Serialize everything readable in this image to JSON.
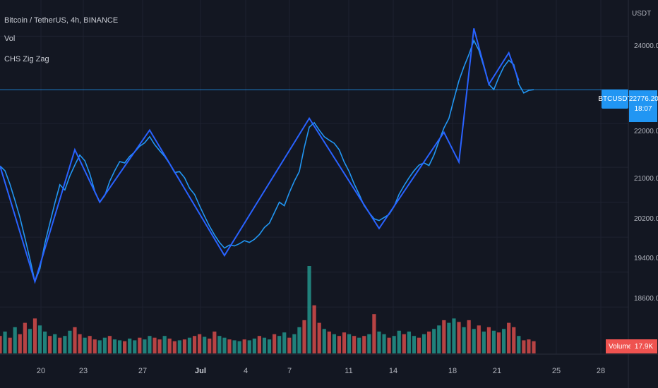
{
  "legend": {
    "symbol": "Bitcoin / TetherUS, 4h, BINANCE",
    "vol": "Vol",
    "zigzag": "CHS Zig Zag"
  },
  "axis": {
    "unit": "USDT",
    "y_ticks": [
      "24000.00",
      "22000.00",
      "21000.00",
      "20200.00",
      "19400.00",
      "18600.00"
    ],
    "x_ticks": [
      "20",
      "23",
      "27",
      "Jul",
      "4",
      "7",
      "11",
      "14",
      "18",
      "21",
      "25",
      "28"
    ]
  },
  "price": {
    "symbol_label": "BTCUSDT",
    "last": "22776.20",
    "countdown": "18:07"
  },
  "volume": {
    "label": "Volume",
    "value": "17.9K"
  },
  "colors": {
    "background": "#131722",
    "price_line": "#2196f3",
    "zigzag": "#2962ff",
    "vol_up": "#26a69a",
    "vol_down": "#ef5350"
  },
  "chart_data": {
    "type": "line",
    "title": "Bitcoin / TetherUS, 4h, BINANCE",
    "series": [
      {
        "name": "Bitcoin / TetherUS",
        "points": [
          [
            0,
            21030
          ],
          [
            1,
            20920
          ],
          [
            2,
            20610
          ],
          [
            3,
            20240
          ],
          [
            4,
            19850
          ],
          [
            5,
            19380
          ],
          [
            6,
            18900
          ],
          [
            7,
            18380
          ],
          [
            8,
            18680
          ],
          [
            9,
            19260
          ],
          [
            10,
            19720
          ],
          [
            11,
            20180
          ],
          [
            12,
            20600
          ],
          [
            13,
            20480
          ],
          [
            14,
            20800
          ],
          [
            15,
            21050
          ],
          [
            16,
            21280
          ],
          [
            17,
            21150
          ],
          [
            18,
            20850
          ],
          [
            19,
            20450
          ],
          [
            20,
            20200
          ],
          [
            21,
            20350
          ],
          [
            22,
            20680
          ],
          [
            23,
            20920
          ],
          [
            24,
            21130
          ],
          [
            25,
            21100
          ],
          [
            26,
            21250
          ],
          [
            27,
            21350
          ],
          [
            28,
            21480
          ],
          [
            29,
            21560
          ],
          [
            30,
            21700
          ],
          [
            31,
            21520
          ],
          [
            32,
            21380
          ],
          [
            33,
            21250
          ],
          [
            34,
            21080
          ],
          [
            35,
            20880
          ],
          [
            36,
            20900
          ],
          [
            37,
            20760
          ],
          [
            38,
            20520
          ],
          [
            39,
            20380
          ],
          [
            40,
            20120
          ],
          [
            41,
            19880
          ],
          [
            42,
            19650
          ],
          [
            43,
            19450
          ],
          [
            44,
            19280
          ],
          [
            45,
            19150
          ],
          [
            46,
            19220
          ],
          [
            47,
            19200
          ],
          [
            48,
            19250
          ],
          [
            49,
            19320
          ],
          [
            50,
            19280
          ],
          [
            51,
            19350
          ],
          [
            52,
            19460
          ],
          [
            53,
            19620
          ],
          [
            54,
            19720
          ],
          [
            55,
            19960
          ],
          [
            56,
            20200
          ],
          [
            57,
            20120
          ],
          [
            58,
            20420
          ],
          [
            59,
            20680
          ],
          [
            60,
            20900
          ],
          [
            61,
            21450
          ],
          [
            62,
            21920
          ],
          [
            63,
            22020
          ],
          [
            64,
            21850
          ],
          [
            65,
            21700
          ],
          [
            66,
            21620
          ],
          [
            67,
            21550
          ],
          [
            68,
            21400
          ],
          [
            69,
            21120
          ],
          [
            70,
            20900
          ],
          [
            71,
            20620
          ],
          [
            72,
            20380
          ],
          [
            73,
            20120
          ],
          [
            74,
            19960
          ],
          [
            75,
            19820
          ],
          [
            76,
            19780
          ],
          [
            77,
            19850
          ],
          [
            78,
            19920
          ],
          [
            79,
            20100
          ],
          [
            80,
            20380
          ],
          [
            81,
            20580
          ],
          [
            82,
            20760
          ],
          [
            83,
            20920
          ],
          [
            84,
            21050
          ],
          [
            85,
            21100
          ],
          [
            86,
            21040
          ],
          [
            87,
            21280
          ],
          [
            88,
            21600
          ],
          [
            89,
            21900
          ],
          [
            90,
            22120
          ],
          [
            91,
            22560
          ],
          [
            92,
            22980
          ],
          [
            93,
            23300
          ],
          [
            94,
            23580
          ],
          [
            95,
            23900
          ],
          [
            96,
            23680
          ],
          [
            97,
            23300
          ],
          [
            98,
            22900
          ],
          [
            99,
            22780
          ],
          [
            100,
            23060
          ],
          [
            101,
            23300
          ],
          [
            102,
            23450
          ],
          [
            103,
            23350
          ],
          [
            104,
            22900
          ],
          [
            105,
            22700
          ],
          [
            106,
            22760
          ],
          [
            107,
            22776
          ]
        ]
      },
      {
        "name": "CHS Zig Zag",
        "points": [
          [
            0,
            21030
          ],
          [
            7,
            18380
          ],
          [
            15,
            21400
          ],
          [
            20,
            20200
          ],
          [
            30,
            21850
          ],
          [
            45,
            18980
          ],
          [
            62,
            22120
          ],
          [
            76,
            19600
          ],
          [
            89,
            21800
          ],
          [
            92,
            21120
          ],
          [
            95,
            24180
          ],
          [
            98,
            22900
          ],
          [
            102,
            23620
          ],
          [
            104,
            22980
          ]
        ]
      }
    ],
    "volume": [
      [
        0,
        0.2,
        0
      ],
      [
        1,
        0.25,
        1
      ],
      [
        2,
        0.18,
        0
      ],
      [
        3,
        0.3,
        1
      ],
      [
        4,
        0.22,
        0
      ],
      [
        5,
        0.35,
        0
      ],
      [
        6,
        0.28,
        1
      ],
      [
        7,
        0.4,
        0
      ],
      [
        8,
        0.32,
        1
      ],
      [
        9,
        0.25,
        1
      ],
      [
        10,
        0.2,
        0
      ],
      [
        11,
        0.22,
        1
      ],
      [
        12,
        0.18,
        0
      ],
      [
        13,
        0.2,
        1
      ],
      [
        14,
        0.26,
        1
      ],
      [
        15,
        0.3,
        0
      ],
      [
        16,
        0.22,
        0
      ],
      [
        17,
        0.18,
        1
      ],
      [
        18,
        0.2,
        0
      ],
      [
        19,
        0.16,
        0
      ],
      [
        20,
        0.15,
        1
      ],
      [
        21,
        0.18,
        1
      ],
      [
        22,
        0.2,
        0
      ],
      [
        23,
        0.16,
        1
      ],
      [
        24,
        0.15,
        1
      ],
      [
        25,
        0.14,
        0
      ],
      [
        26,
        0.17,
        1
      ],
      [
        27,
        0.15,
        1
      ],
      [
        28,
        0.18,
        0
      ],
      [
        29,
        0.16,
        1
      ],
      [
        30,
        0.2,
        1
      ],
      [
        31,
        0.18,
        0
      ],
      [
        32,
        0.16,
        0
      ],
      [
        33,
        0.2,
        1
      ],
      [
        34,
        0.17,
        0
      ],
      [
        35,
        0.14,
        0
      ],
      [
        36,
        0.15,
        1
      ],
      [
        37,
        0.16,
        0
      ],
      [
        38,
        0.18,
        1
      ],
      [
        39,
        0.2,
        0
      ],
      [
        40,
        0.22,
        0
      ],
      [
        41,
        0.19,
        1
      ],
      [
        42,
        0.17,
        0
      ],
      [
        43,
        0.25,
        0
      ],
      [
        44,
        0.2,
        1
      ],
      [
        45,
        0.18,
        1
      ],
      [
        46,
        0.16,
        0
      ],
      [
        47,
        0.15,
        1
      ],
      [
        48,
        0.14,
        1
      ],
      [
        49,
        0.16,
        0
      ],
      [
        50,
        0.15,
        1
      ],
      [
        51,
        0.17,
        1
      ],
      [
        52,
        0.2,
        0
      ],
      [
        53,
        0.18,
        1
      ],
      [
        54,
        0.16,
        1
      ],
      [
        55,
        0.22,
        0
      ],
      [
        56,
        0.2,
        1
      ],
      [
        57,
        0.24,
        1
      ],
      [
        58,
        0.18,
        0
      ],
      [
        59,
        0.22,
        1
      ],
      [
        60,
        0.3,
        1
      ],
      [
        61,
        0.38,
        0
      ],
      [
        62,
        1.0,
        1
      ],
      [
        63,
        0.55,
        0
      ],
      [
        64,
        0.35,
        0
      ],
      [
        65,
        0.28,
        1
      ],
      [
        66,
        0.25,
        0
      ],
      [
        67,
        0.22,
        1
      ],
      [
        68,
        0.2,
        0
      ],
      [
        69,
        0.24,
        0
      ],
      [
        70,
        0.22,
        1
      ],
      [
        71,
        0.2,
        0
      ],
      [
        72,
        0.18,
        1
      ],
      [
        73,
        0.2,
        0
      ],
      [
        74,
        0.22,
        1
      ],
      [
        75,
        0.45,
        0
      ],
      [
        76,
        0.25,
        1
      ],
      [
        77,
        0.22,
        1
      ],
      [
        78,
        0.18,
        0
      ],
      [
        79,
        0.2,
        1
      ],
      [
        80,
        0.26,
        1
      ],
      [
        81,
        0.22,
        0
      ],
      [
        82,
        0.25,
        1
      ],
      [
        83,
        0.2,
        1
      ],
      [
        84,
        0.18,
        0
      ],
      [
        85,
        0.22,
        1
      ],
      [
        86,
        0.25,
        0
      ],
      [
        87,
        0.28,
        1
      ],
      [
        88,
        0.32,
        1
      ],
      [
        89,
        0.38,
        0
      ],
      [
        90,
        0.35,
        1
      ],
      [
        91,
        0.4,
        1
      ],
      [
        92,
        0.36,
        0
      ],
      [
        93,
        0.3,
        1
      ],
      [
        94,
        0.38,
        0
      ],
      [
        95,
        0.28,
        1
      ],
      [
        96,
        0.32,
        0
      ],
      [
        97,
        0.25,
        1
      ],
      [
        98,
        0.3,
        0
      ],
      [
        99,
        0.26,
        1
      ],
      [
        100,
        0.24,
        0
      ],
      [
        101,
        0.28,
        1
      ],
      [
        102,
        0.35,
        0
      ],
      [
        103,
        0.3,
        0
      ],
      [
        104,
        0.2,
        1
      ],
      [
        105,
        0.15,
        0
      ],
      [
        106,
        0.16,
        0
      ],
      [
        107,
        0.14,
        0
      ]
    ],
    "ylim": [
      17400,
      24700
    ],
    "grid": true
  }
}
